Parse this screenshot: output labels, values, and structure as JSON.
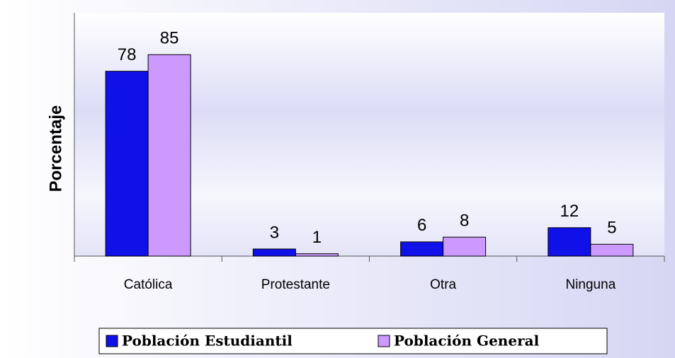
{
  "chart_data": {
    "type": "bar",
    "y_label": "Porcentaje",
    "categories": [
      "Católica",
      "Protestante",
      "Otra",
      "Ninguna"
    ],
    "series": [
      {
        "name": "Población Estudiantil",
        "color": "#1010e8",
        "values": [
          78,
          3,
          6,
          12
        ]
      },
      {
        "name": "Población General",
        "color": "#cc99ff",
        "values": [
          85,
          1,
          8,
          5
        ]
      }
    ],
    "ylim": [
      0,
      100
    ],
    "legend": "bottom"
  }
}
